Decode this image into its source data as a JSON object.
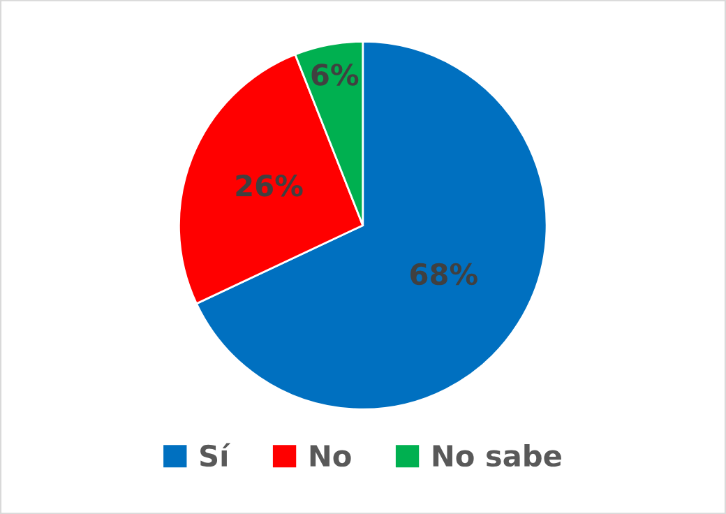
{
  "chart_data": {
    "type": "pie",
    "categories": [
      "Sí",
      "No",
      "No sabe"
    ],
    "values": [
      68,
      26,
      6
    ],
    "colors": [
      "#0070c0",
      "#ff0000",
      "#00b050"
    ],
    "value_labels": [
      "68%",
      "26%",
      "6%"
    ],
    "legend": "bottom"
  }
}
